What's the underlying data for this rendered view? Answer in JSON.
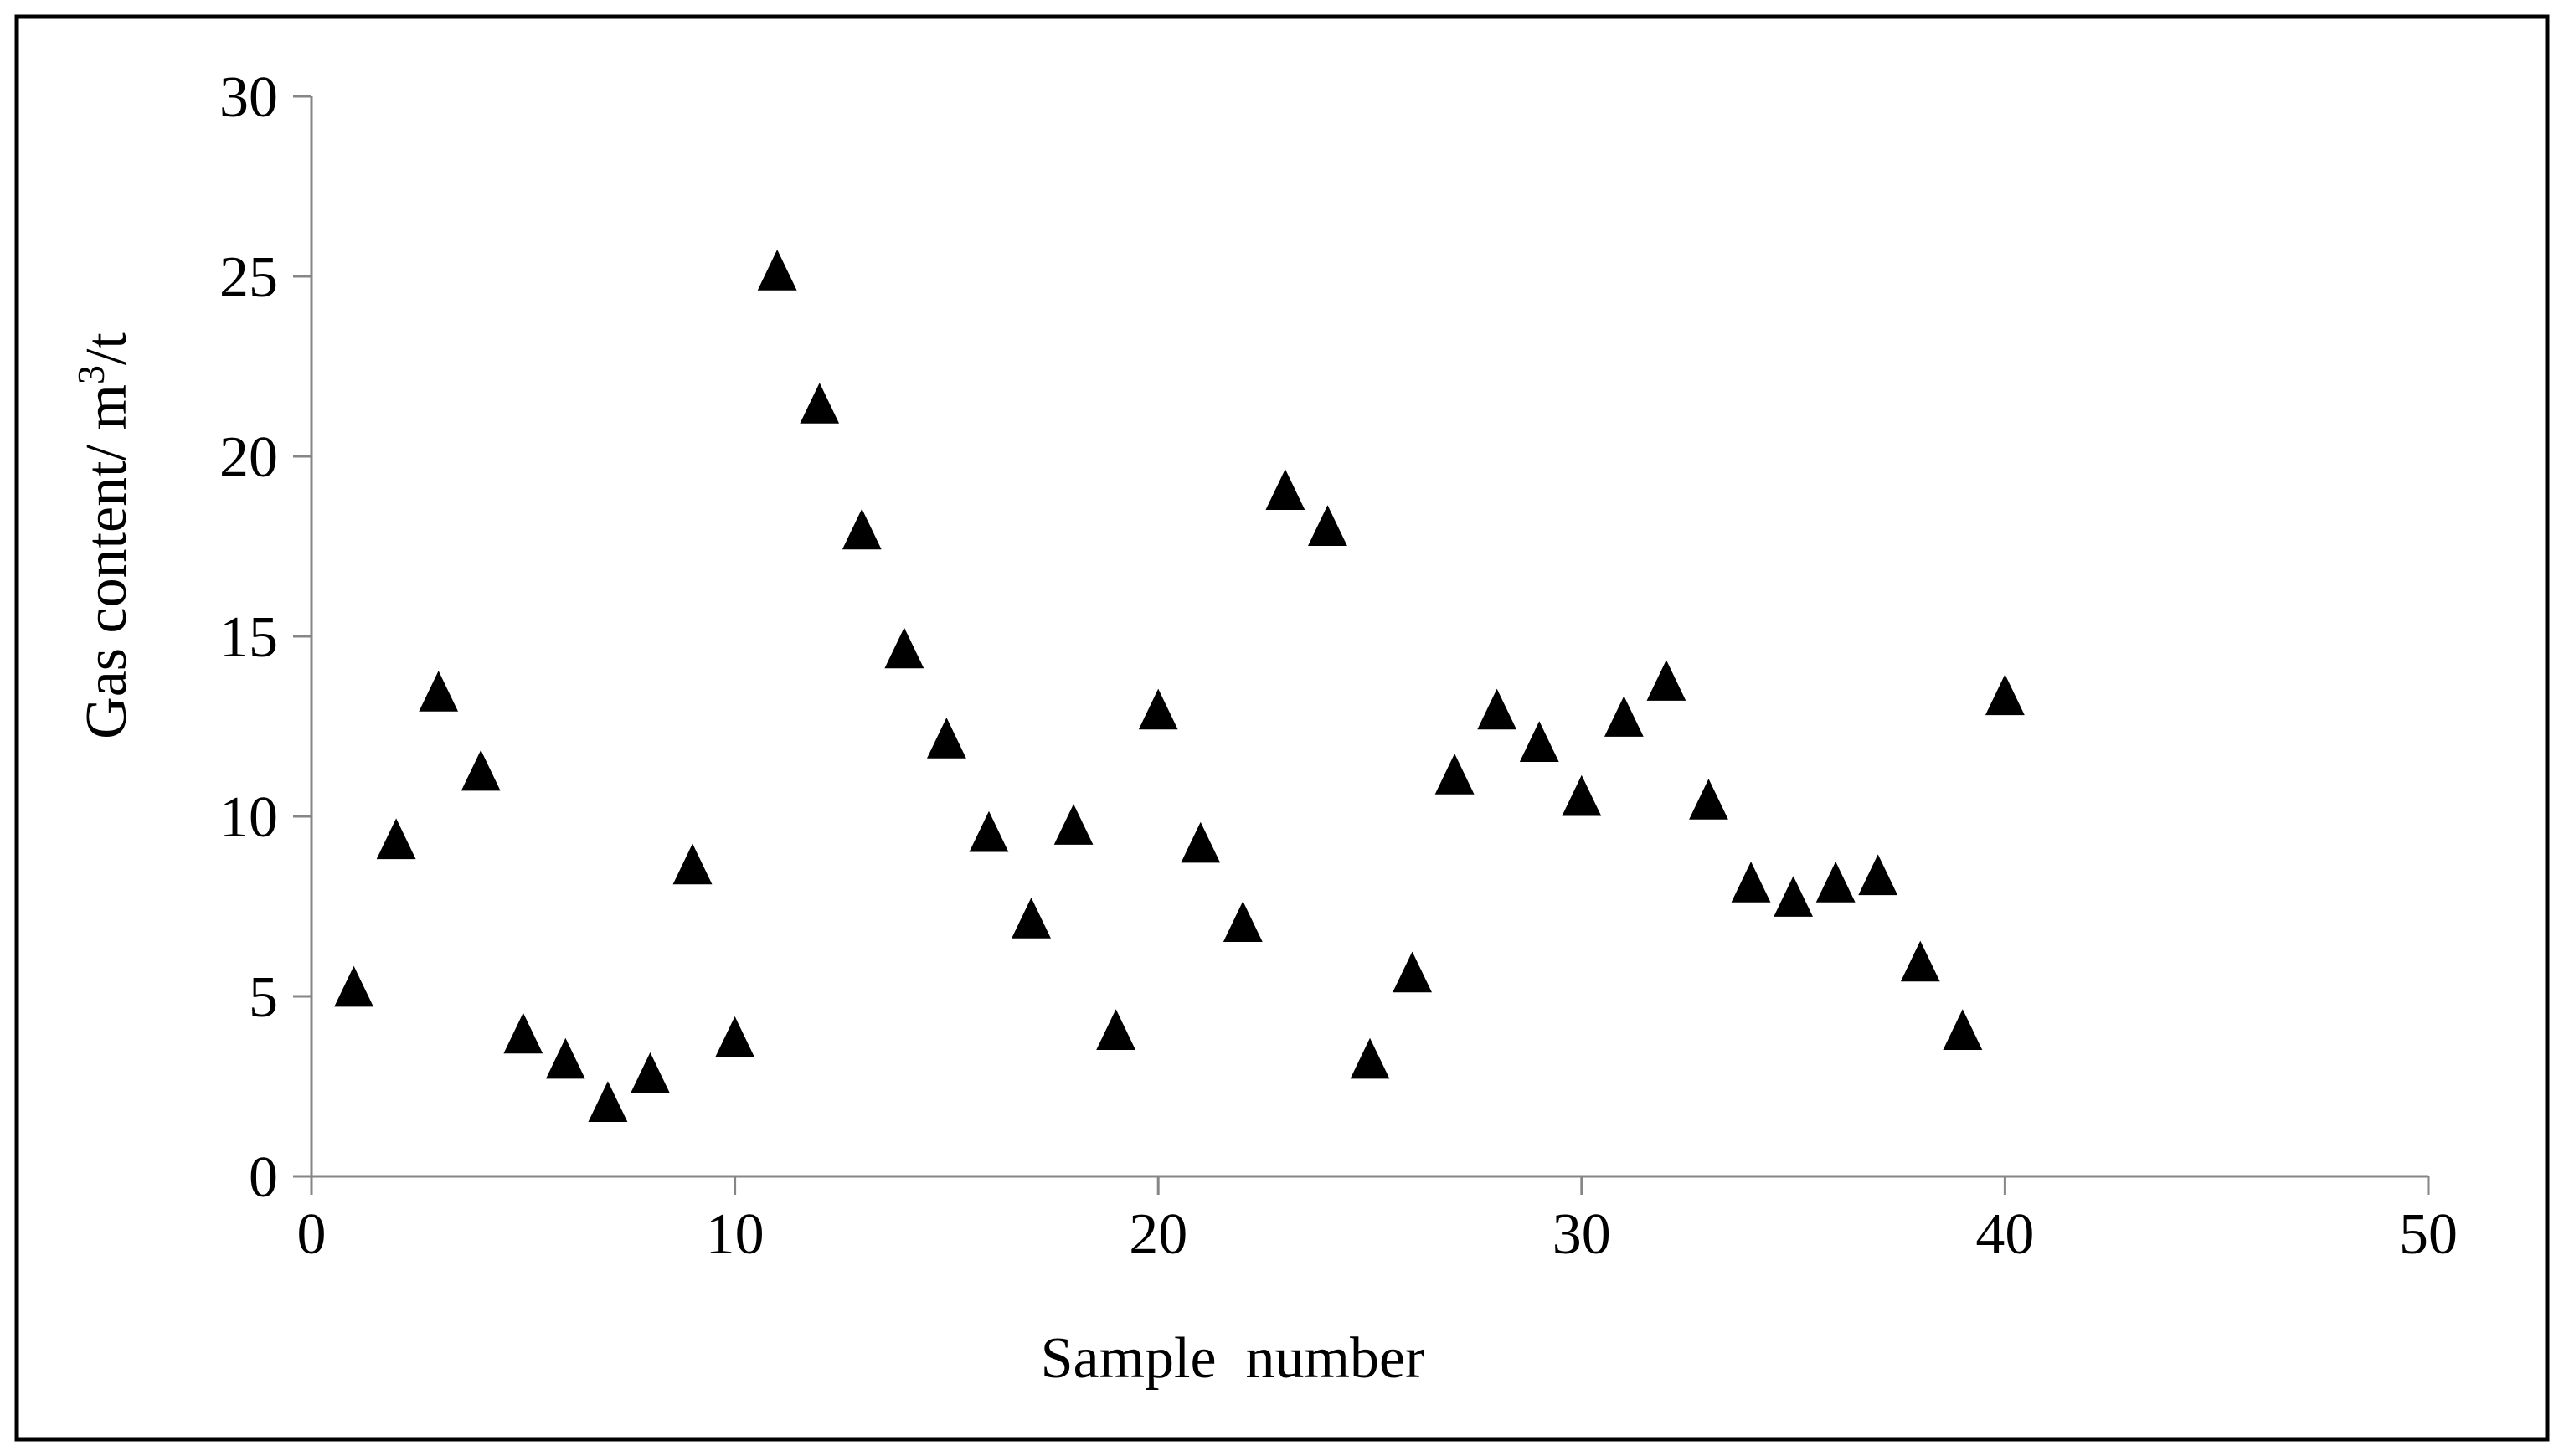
{
  "chart_data": {
    "type": "scatter",
    "title": "",
    "xlabel": "Sample  number",
    "ylabel": "Gas content/ m",
    "ylabel_superscript": "3",
    "ylabel_suffix": "/t",
    "xlim": [
      0,
      50
    ],
    "ylim": [
      0,
      30
    ],
    "x_ticks": [
      0,
      10,
      20,
      30,
      40,
      50
    ],
    "y_ticks": [
      0,
      5,
      10,
      15,
      20,
      25,
      30
    ],
    "x_tick_labels": [
      "0",
      "10",
      "20",
      "30",
      "40",
      "50"
    ],
    "y_tick_labels": [
      "0",
      "5",
      "10",
      "15",
      "20",
      "25",
      "30"
    ],
    "grid": false,
    "legend": "none",
    "marker": "triangle",
    "marker_color": "#000000",
    "axis_color": "#868686",
    "border_color": "#000000",
    "series": [
      {
        "x": [
          1,
          2,
          3,
          4,
          5,
          6,
          7,
          8,
          9,
          10,
          11,
          12,
          13,
          14,
          15,
          16,
          17,
          18,
          19,
          20,
          21,
          22,
          23,
          24,
          25,
          26,
          27,
          28,
          29,
          30,
          31,
          32,
          33,
          34,
          35,
          36,
          37,
          38,
          39,
          40
        ],
        "y": [
          5.2,
          9.3,
          13.4,
          11.2,
          3.9,
          3.2,
          2.0,
          2.8,
          8.6,
          3.8,
          25.1,
          21.4,
          17.9,
          14.6,
          12.1,
          9.5,
          7.1,
          9.7,
          4.0,
          12.9,
          9.2,
          7.0,
          19.0,
          18.0,
          3.2,
          5.6,
          11.1,
          12.9,
          12.0,
          10.5,
          12.7,
          13.7,
          10.4,
          8.1,
          7.7,
          8.1,
          8.3,
          5.9,
          4.0,
          13.3
        ]
      }
    ]
  }
}
